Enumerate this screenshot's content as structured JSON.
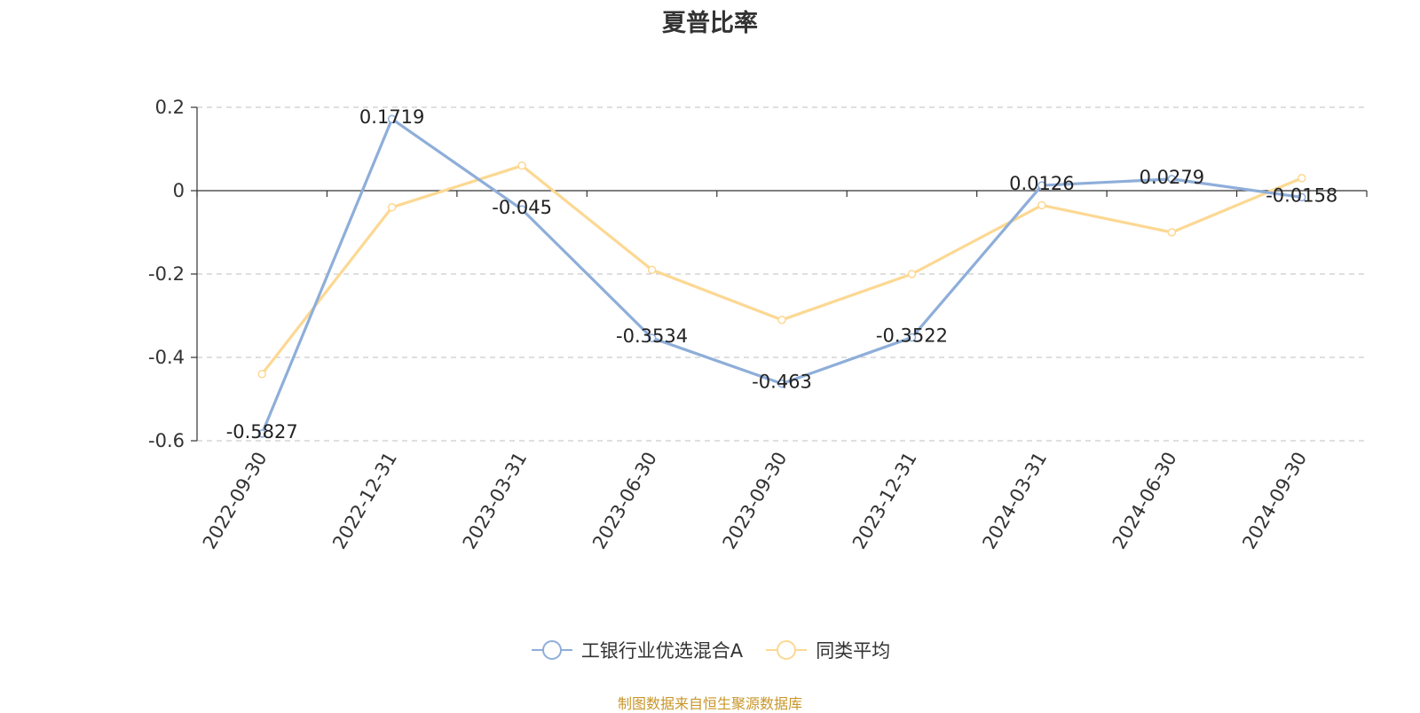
{
  "chart_data": {
    "type": "line",
    "title": "夏普比率",
    "categories": [
      "2022-09-30",
      "2022-12-31",
      "2023-03-31",
      "2023-06-30",
      "2023-09-30",
      "2023-12-31",
      "2024-03-31",
      "2024-06-30",
      "2024-09-30"
    ],
    "series": [
      {
        "name": "工银行业优选混合A",
        "color": "#8eaed9",
        "values": [
          -0.5827,
          0.1719,
          -0.045,
          -0.3534,
          -0.463,
          -0.3522,
          0.0126,
          0.0279,
          -0.0158
        ],
        "labels": [
          "-0.5827",
          "0.1719",
          "-0.045",
          "-0.3534",
          "-0.463",
          "-0.3522",
          "0.0126",
          "0.0279",
          "-0.0158"
        ]
      },
      {
        "name": "同类平均",
        "color": "#fcd893",
        "values": [
          -0.44,
          -0.04,
          0.06,
          -0.19,
          -0.31,
          -0.2,
          -0.035,
          -0.1,
          0.03
        ]
      }
    ],
    "ylim": [
      -0.6,
      0.2
    ],
    "yticks": [
      0.2,
      0,
      -0.2,
      -0.4,
      -0.6
    ],
    "ytick_labels": [
      "0.2",
      "0",
      "-0.2",
      "-0.4",
      "-0.6"
    ],
    "grid": true,
    "legend_position": "bottom-center",
    "xlabel": "",
    "ylabel": ""
  },
  "footer": {
    "source": "制图数据来自恒生聚源数据库"
  }
}
